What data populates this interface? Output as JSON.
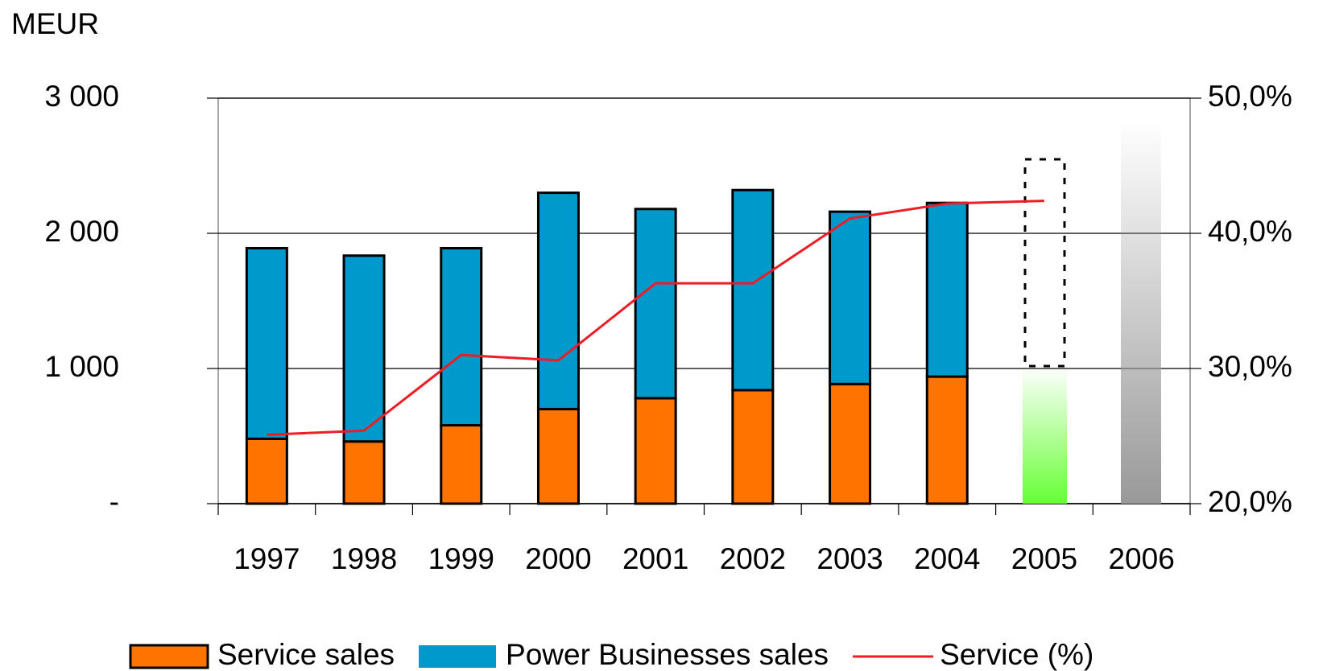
{
  "chart_data": {
    "type": "bar",
    "y_label": "MEUR",
    "categories": [
      "1997",
      "1998",
      "1999",
      "2000",
      "2001",
      "2002",
      "2003",
      "2004",
      "2005",
      "2006"
    ],
    "series": [
      {
        "name": "Service sales",
        "color": "#ff7300",
        "values": [
          480,
          460,
          580,
          700,
          780,
          840,
          885,
          940,
          null,
          null
        ]
      },
      {
        "name": "Power Businesses sales",
        "color": "#0099cc",
        "values": [
          1410,
          1375,
          1310,
          1600,
          1400,
          1480,
          1275,
          1285,
          null,
          null
        ]
      },
      {
        "name": "Service (%)",
        "color": "#ee1c25",
        "type": "line",
        "axis": "y2",
        "values": [
          25.1,
          25.4,
          31.0,
          30.6,
          36.3,
          36.3,
          41.1,
          42.2,
          42.4,
          null
        ]
      }
    ],
    "stacked": true,
    "ylim": [
      0,
      3000
    ],
    "yticks": [
      {
        "value": 0,
        "label": "-"
      },
      {
        "value": 1000,
        "label": "1 000"
      },
      {
        "value": 2000,
        "label": "2 000"
      },
      {
        "value": 3000,
        "label": "3 000"
      }
    ],
    "y2lim": [
      20,
      50
    ],
    "y2ticks": [
      {
        "value": 20,
        "label": "20,0%"
      },
      {
        "value": 30,
        "label": "30,0%"
      },
      {
        "value": 40,
        "label": "40,0%"
      },
      {
        "value": 50,
        "label": "50,0%"
      }
    ],
    "grid": true,
    "legend": "bottom"
  }
}
